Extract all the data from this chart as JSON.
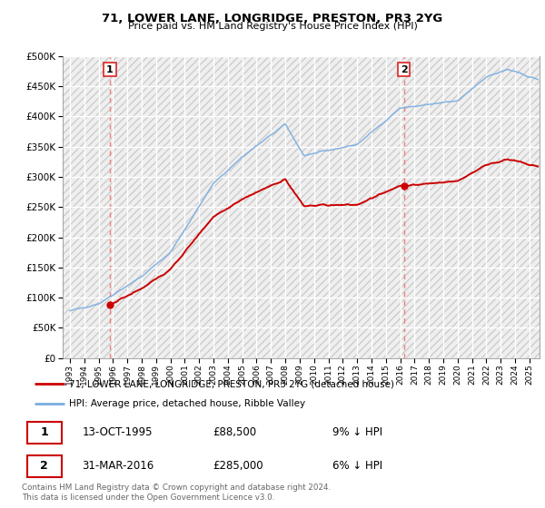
{
  "title": "71, LOWER LANE, LONGRIDGE, PRESTON, PR3 2YG",
  "subtitle": "Price paid vs. HM Land Registry's House Price Index (HPI)",
  "legend_line1": "71, LOWER LANE, LONGRIDGE, PRESTON, PR3 2YG (detached house)",
  "legend_line2": "HPI: Average price, detached house, Ribble Valley",
  "annotation1_date": "13-OCT-1995",
  "annotation1_price": "£88,500",
  "annotation1_hpi": "9% ↓ HPI",
  "annotation2_date": "31-MAR-2016",
  "annotation2_price": "£285,000",
  "annotation2_hpi": "6% ↓ HPI",
  "footer": "Contains HM Land Registry data © Crown copyright and database right 2024.\nThis data is licensed under the Open Government Licence v3.0.",
  "sale1_year": 1995.79,
  "sale1_price": 88500,
  "sale2_year": 2016.25,
  "sale2_price": 285000,
  "hpi_color": "#7aade0",
  "price_color": "#cc0000",
  "dashed_color": "#f08080",
  "ylim_min": 0,
  "ylim_max": 500000,
  "xlim_min": 1992.5,
  "xlim_max": 2025.7
}
